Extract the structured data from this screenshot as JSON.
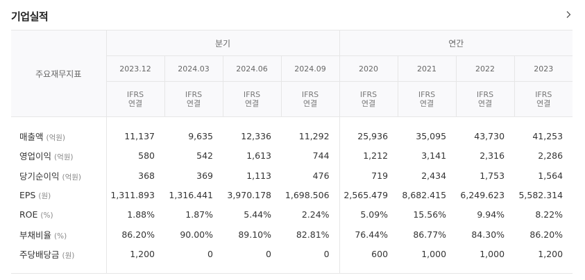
{
  "header": {
    "title": "기업실적"
  },
  "table": {
    "label_header": "주요재무지표",
    "groups": {
      "quarter": "분기",
      "annual": "연간"
    },
    "periods": [
      "2023.12",
      "2024.03",
      "2024.06",
      "2024.09",
      "2020",
      "2021",
      "2022",
      "2023"
    ],
    "basis": {
      "line1": "IFRS",
      "line2": "연결"
    },
    "rows": [
      {
        "name": "매출액",
        "unit": "(억원)",
        "values": [
          "11,137",
          "9,635",
          "12,336",
          "11,292",
          "25,936",
          "35,095",
          "43,730",
          "41,253"
        ]
      },
      {
        "name": "영업이익",
        "unit": "(억원)",
        "values": [
          "580",
          "542",
          "1,613",
          "744",
          "1,212",
          "3,141",
          "2,316",
          "2,286"
        ]
      },
      {
        "name": "당기순이익",
        "unit": "(억원)",
        "values": [
          "368",
          "369",
          "1,113",
          "476",
          "719",
          "2,434",
          "1,753",
          "1,564"
        ]
      },
      {
        "name": "EPS",
        "unit": "(원)",
        "values": [
          "1,311.893",
          "1,316.441",
          "3,970.178",
          "1,698.506",
          "2,565.479",
          "8,682.415",
          "6,249.623",
          "5,582.314"
        ]
      },
      {
        "name": "ROE",
        "unit": "(%)",
        "values": [
          "1.88%",
          "1.87%",
          "5.44%",
          "2.24%",
          "5.09%",
          "15.56%",
          "9.94%",
          "8.22%"
        ]
      },
      {
        "name": "부채비율",
        "unit": "(%)",
        "values": [
          "86.20%",
          "90.00%",
          "89.10%",
          "82.81%",
          "76.44%",
          "86.77%",
          "84.30%",
          "86.20%"
        ]
      },
      {
        "name": "주당배당금",
        "unit": "(원)",
        "values": [
          "1,200",
          "0",
          "0",
          "0",
          "600",
          "1,000",
          "1,000",
          "1,200"
        ]
      }
    ]
  }
}
